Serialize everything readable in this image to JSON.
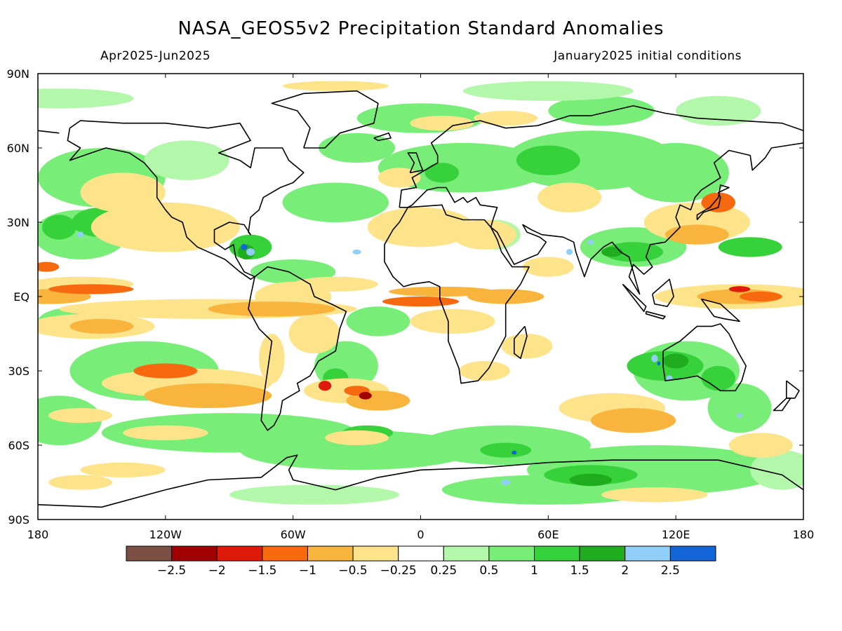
{
  "title": "NASA_GEOS5v2 Precipitation Standard Anomalies",
  "period": "Apr2025-Jun2025",
  "initial_conditions": "January2025 initial conditions",
  "map": {
    "lat_labels": [
      "90N",
      "60N",
      "30N",
      "EQ",
      "30S",
      "60S",
      "90S"
    ],
    "lon_labels": [
      "180",
      "120W",
      "60W",
      "0",
      "60E",
      "120E",
      "180"
    ],
    "colors": {
      "ocean": "#ffffff",
      "coast": "#000000",
      "frame": "#000000"
    }
  },
  "colorbar": {
    "colors": [
      "#7b4f43",
      "#a00000",
      "#e01a0a",
      "#f7690f",
      "#f9b43e",
      "#fde38a",
      "#ffffff",
      "#b3f7aa",
      "#78ee78",
      "#37d13c",
      "#1fad1f",
      "#91cff8",
      "#1466d8"
    ],
    "labels": [
      "-2.5",
      "-2",
      "-1.5",
      "-1",
      "-0.5",
      "-0.25",
      "0.25",
      "0.5",
      "1",
      "1.5",
      "2",
      "2.5"
    ]
  }
}
